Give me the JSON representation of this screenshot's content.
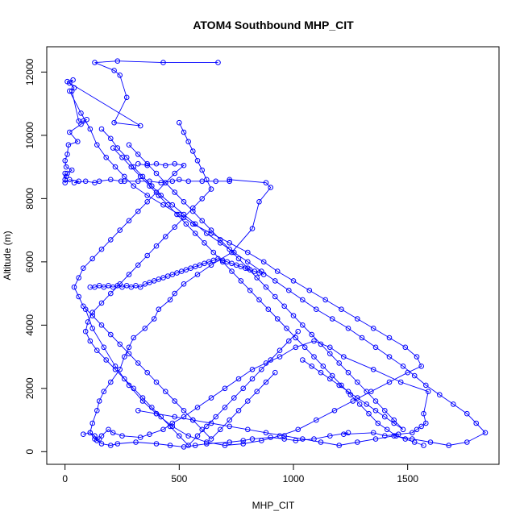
{
  "chart_data": {
    "type": "line",
    "title": "ATOM4 Southbound MHP_CIT",
    "xlabel": "MHP_CIT",
    "ylabel": "Altitude (m)",
    "xlim": [
      -80,
      1900
    ],
    "ylim": [
      -400,
      12800
    ],
    "x_ticks": [
      0,
      500,
      1000,
      1500
    ],
    "y_ticks": [
      0,
      2000,
      4000,
      6000,
      8000,
      10000,
      12000
    ],
    "marker": "open-circle",
    "series_color": "#0000ff",
    "grid": false,
    "series": [
      {
        "x": [
          670,
          430,
          230,
          130,
          215,
          240,
          270,
          215,
          330,
          10,
          35,
          20,
          40,
          30,
          60,
          80,
          95,
          70,
          20,
          55,
          15,
          10,
          0,
          5,
          30,
          10,
          5,
          0,
          0,
          0,
          20,
          60,
          40,
          90,
          130,
          150,
          200,
          245,
          260,
          320,
          370,
          420,
          470,
          500,
          540,
          600,
          660,
          720,
          720,
          880,
          900,
          850,
          820,
          730,
          640,
          580,
          520,
          480,
          460,
          410,
          390,
          350,
          300,
          280,
          260,
          240,
          200,
          170,
          150,
          140,
          120,
          110,
          130,
          160,
          200,
          230,
          310,
          400,
          460,
          520,
          570,
          620,
          720,
          780,
          820,
          900,
          960,
          1010,
          1090,
          1160,
          1240,
          1220,
          1350,
          1400,
          1460,
          1520,
          1540,
          1560,
          1580,
          1570,
          1590,
          1470,
          1350,
          1220,
          1160,
          1090,
          1010,
          940,
          880,
          820,
          760,
          700,
          640,
          580,
          520,
          470,
          430,
          370,
          330,
          250,
          210,
          190,
          160,
          150,
          140,
          130,
          110,
          80
        ],
        "y": [
          12300,
          12300,
          12350,
          12300,
          12050,
          11900,
          11200,
          10400,
          10300,
          11700,
          11750,
          11650,
          11500,
          11400,
          10450,
          10450,
          10500,
          10350,
          10100,
          9800,
          9700,
          9400,
          9200,
          9000,
          8900,
          8800,
          8700,
          8600,
          8800,
          8500,
          8600,
          8550,
          8500,
          8550,
          8500,
          8550,
          8600,
          8550,
          8550,
          8550,
          8550,
          8500,
          8550,
          8600,
          8550,
          8550,
          8550,
          8550,
          8600,
          8500,
          8350,
          7900,
          7050,
          6300,
          5900,
          5600,
          5300,
          5000,
          4800,
          4500,
          4200,
          3900,
          3600,
          3300,
          3000,
          2600,
          2200,
          1900,
          1600,
          1300,
          900,
          600,
          400,
          250,
          200,
          250,
          300,
          250,
          200,
          150,
          200,
          250,
          300,
          350,
          400,
          450,
          400,
          350,
          400,
          500,
          600,
          550,
          600,
          500,
          550,
          600,
          700,
          800,
          900,
          1200,
          1900,
          2200,
          2600,
          3000,
          3300,
          3500,
          3300,
          3000,
          2800,
          2600,
          2300,
          2000,
          1700,
          1400,
          1100,
          900,
          700,
          550,
          450,
          500,
          600,
          700,
          500,
          400,
          350,
          500,
          600,
          550
        ]
      },
      {
        "x": [
          20,
          70,
          110,
          140,
          180,
          220,
          260,
          300,
          360,
          430,
          500,
          560,
          640,
          720,
          800,
          870,
          930,
          1000,
          1070,
          1140,
          1210,
          1280,
          1350,
          1420,
          1490,
          1540,
          1560,
          1500,
          1420,
          1340,
          1260,
          1180,
          1100,
          1020,
          940,
          860,
          780,
          700,
          620,
          540,
          470,
          400,
          340,
          280,
          220,
          170,
          120,
          90
        ],
        "y": [
          11400,
          10700,
          10200,
          9700,
          9300,
          9000,
          8700,
          8400,
          8100,
          7800,
          7500,
          7200,
          6900,
          6600,
          6300,
          6000,
          5700,
          5400,
          5100,
          4800,
          4500,
          4200,
          3900,
          3600,
          3300,
          3000,
          2700,
          2500,
          2200,
          1900,
          1600,
          1300,
          1000,
          700,
          500,
          350,
          250,
          200,
          300,
          500,
          800,
          1200,
          1600,
          2100,
          2700,
          3300,
          3900,
          4500
        ]
      },
      {
        "x": [
          160,
          200,
          230,
          270,
          300,
          340,
          380,
          420,
          470,
          520,
          570,
          620,
          680,
          740,
          800,
          860,
          920,
          980,
          1040,
          1100,
          1170,
          1240,
          1300,
          1360,
          1420,
          1480,
          1530,
          1580,
          1640,
          1700,
          1760,
          1800,
          1840,
          1760,
          1680,
          1600,
          1520,
          1440,
          1360,
          1280,
          1200,
          1120,
          1040,
          960,
          880,
          800,
          720,
          640,
          560,
          480,
          400,
          320
        ],
        "y": [
          10200,
          9900,
          9600,
          9300,
          9000,
          8700,
          8400,
          8100,
          7800,
          7500,
          7200,
          6900,
          6600,
          6300,
          6000,
          5700,
          5400,
          5100,
          4800,
          4500,
          4200,
          3900,
          3600,
          3300,
          3000,
          2700,
          2400,
          2100,
          1800,
          1500,
          1200,
          900,
          600,
          300,
          200,
          300,
          400,
          500,
          400,
          300,
          200,
          300,
          400,
          500,
          600,
          700,
          800,
          900,
          1000,
          1100,
          1200,
          1300
        ]
      },
      {
        "x": [
          280,
          320,
          360,
          400,
          440,
          480,
          520,
          560,
          600,
          640,
          680,
          720,
          760,
          800,
          840,
          880,
          920,
          960,
          1000,
          1040,
          1080,
          1120,
          1160,
          1200,
          1240,
          1280,
          1320,
          1360,
          1400,
          1440,
          1480,
          1440,
          1400,
          1360,
          1320,
          1280,
          1240,
          1200,
          1160,
          1120,
          1080,
          1040
        ],
        "y": [
          9700,
          9400,
          9100,
          8800,
          8500,
          8200,
          7900,
          7600,
          7300,
          7000,
          6700,
          6400,
          6100,
          5800,
          5500,
          5200,
          4900,
          4600,
          4300,
          4000,
          3700,
          3400,
          3100,
          2800,
          2500,
          2200,
          1900,
          1600,
          1300,
          1000,
          700,
          900,
          1100,
          1300,
          1500,
          1700,
          1900,
          2100,
          2300,
          2500,
          2700,
          2900
        ]
      },
      {
        "x": [
          500,
          520,
          540,
          560,
          580,
          600,
          620,
          640,
          600,
          560,
          520,
          480,
          440,
          400,
          360,
          320,
          280,
          240,
          200,
          160,
          120,
          100,
          90,
          110,
          140,
          180,
          220,
          260,
          300,
          340,
          380,
          420,
          460,
          500,
          540,
          580,
          620,
          660,
          700,
          740,
          780,
          820,
          860,
          900,
          940,
          980,
          1020
        ],
        "y": [
          10400,
          10100,
          9800,
          9500,
          9200,
          8900,
          8600,
          8300,
          8000,
          7700,
          7400,
          7100,
          6800,
          6500,
          6200,
          5900,
          5600,
          5300,
          5000,
          4700,
          4400,
          4100,
          3800,
          3500,
          3200,
          2900,
          2600,
          2300,
          2000,
          1700,
          1400,
          1100,
          800,
          500,
          200,
          500,
          800,
          1100,
          1400,
          1700,
          2000,
          2300,
          2600,
          2900,
          3200,
          3500,
          3800
        ]
      },
      {
        "x": [
          110,
          130,
          150,
          170,
          190,
          210,
          230,
          250,
          270,
          290,
          310,
          330,
          350,
          370,
          390,
          410,
          430,
          450,
          470,
          490,
          510,
          530,
          550,
          570,
          590,
          610,
          630,
          650,
          670,
          690,
          710,
          730,
          750,
          770,
          790,
          810,
          830,
          850,
          870
        ],
        "y": [
          5200,
          5200,
          5250,
          5200,
          5250,
          5200,
          5250,
          5200,
          5250,
          5200,
          5250,
          5200,
          5300,
          5350,
          5400,
          5450,
          5500,
          5550,
          5600,
          5650,
          5700,
          5750,
          5800,
          5850,
          5900,
          5950,
          6000,
          6050,
          6100,
          6050,
          6000,
          5950,
          5900,
          5850,
          5800,
          5750,
          5700,
          5650,
          5600
        ]
      },
      {
        "x": [
          320,
          360,
          400,
          440,
          480,
          520,
          480,
          440,
          400,
          360,
          320,
          280,
          240,
          200,
          160,
          120,
          80,
          60,
          40,
          60,
          80,
          120,
          160,
          200,
          240,
          280,
          320,
          360,
          400,
          440,
          480,
          520,
          560,
          600,
          640,
          680,
          720,
          760,
          800,
          840,
          880,
          920
        ],
        "y": [
          9100,
          9050,
          9100,
          9050,
          9100,
          9050,
          8800,
          8500,
          8200,
          7900,
          7600,
          7300,
          7000,
          6700,
          6400,
          6100,
          5800,
          5500,
          5200,
          4900,
          4600,
          4300,
          4000,
          3700,
          3400,
          3100,
          2800,
          2500,
          2200,
          1900,
          1600,
          1300,
          1000,
          700,
          400,
          700,
          1000,
          1300,
          1600,
          1900,
          2200,
          2500
        ]
      },
      {
        "x": [
          210,
          250,
          290,
          330,
          370,
          410,
          450,
          490,
          530,
          570,
          610,
          650,
          690,
          730,
          770,
          810,
          850,
          890,
          930,
          970,
          1010,
          1050,
          1090,
          1130,
          1170,
          1210,
          1250,
          1290,
          1330,
          1370,
          1410,
          1450,
          1490,
          1530,
          1570
        ],
        "y": [
          9600,
          9300,
          9000,
          8700,
          8400,
          8100,
          7800,
          7500,
          7200,
          6900,
          6600,
          6300,
          6000,
          5700,
          5400,
          5100,
          4800,
          4500,
          4200,
          3900,
          3600,
          3300,
          3000,
          2700,
          2400,
          2100,
          1800,
          1500,
          1200,
          900,
          700,
          500,
          400,
          300,
          200
        ]
      }
    ]
  }
}
